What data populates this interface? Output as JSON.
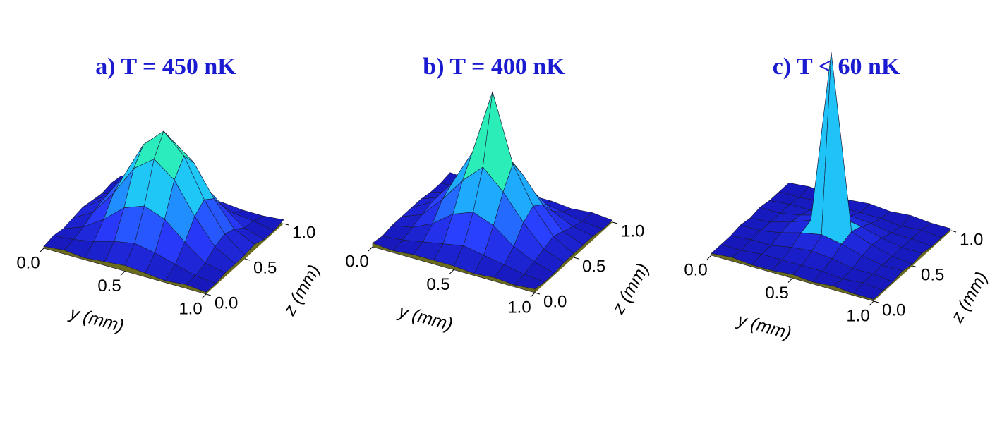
{
  "chart_data": [
    {
      "type": "surface",
      "title": "a) T = 450 nK",
      "xlabel": "y (mm)",
      "ylabel": "z (mm)",
      "xlim": [
        0,
        1
      ],
      "ylim": [
        0,
        1
      ],
      "clim": [
        0,
        1
      ],
      "xticks": [
        {
          "value": 0,
          "label": "0.0"
        },
        0.5,
        {
          "value": 1,
          "label": "1.0"
        }
      ],
      "yticks": [
        {
          "value": 0,
          "label": "0.0"
        },
        0.5,
        {
          "value": 1,
          "label": "1.0"
        }
      ],
      "colormap": [
        "#1414b4",
        "#2a3cff",
        "#1ea0ff",
        "#20e6f0",
        "#30f0a0",
        "#50f030",
        "#d8f020",
        "#f0b020",
        "#f07018"
      ],
      "floor_color": "#6b6b1e",
      "edge_color": "#1a1a3a",
      "x": [
        0,
        0.125,
        0.25,
        0.375,
        0.5,
        0.625,
        0.75,
        0.875,
        1
      ],
      "y": [
        0,
        0.125,
        0.25,
        0.375,
        0.5,
        0.625,
        0.75,
        0.875,
        1
      ],
      "z": [
        [
          0.01,
          0.02,
          0.01,
          0.02,
          0.03,
          0.02,
          0.01,
          0.02,
          0.01
        ],
        [
          0.02,
          0.03,
          0.05,
          0.08,
          0.1,
          0.08,
          0.05,
          0.02,
          0.01
        ],
        [
          0.01,
          0.05,
          0.12,
          0.21,
          0.25,
          0.21,
          0.12,
          0.04,
          0.02
        ],
        [
          0.02,
          0.08,
          0.21,
          0.37,
          0.45,
          0.37,
          0.21,
          0.08,
          0.02
        ],
        [
          0.03,
          0.1,
          0.25,
          0.45,
          0.55,
          0.45,
          0.25,
          0.1,
          0.02
        ],
        [
          0.02,
          0.08,
          0.21,
          0.37,
          0.45,
          0.37,
          0.21,
          0.08,
          0.03
        ],
        [
          0.01,
          0.04,
          0.12,
          0.21,
          0.25,
          0.21,
          0.12,
          0.04,
          0.01
        ],
        [
          0.02,
          0.02,
          0.04,
          0.08,
          0.1,
          0.08,
          0.04,
          0.03,
          0.01
        ],
        [
          0.01,
          0.01,
          0.02,
          0.02,
          0.02,
          0.02,
          0.01,
          0.01,
          0.02
        ]
      ]
    },
    {
      "type": "surface",
      "title": "b) T = 400 nK",
      "xlabel": "y (mm)",
      "ylabel": "z (mm)",
      "xlim": [
        0,
        1
      ],
      "ylim": [
        0,
        1
      ],
      "clim": [
        0,
        1
      ],
      "xticks": [
        {
          "value": 0,
          "label": "0.0"
        },
        0.5,
        {
          "value": 1,
          "label": "1.0"
        }
      ],
      "yticks": [
        {
          "value": 0,
          "label": "0.0"
        },
        0.5,
        {
          "value": 1,
          "label": "1.0"
        }
      ],
      "colormap": [
        "#1414b4",
        "#2a3cff",
        "#1ea0ff",
        "#20e6f0",
        "#30f0a0",
        "#50f030",
        "#d8f020",
        "#f0b020",
        "#f07018"
      ],
      "floor_color": "#6b6b1e",
      "edge_color": "#1a1a3a",
      "x": [
        0,
        0.125,
        0.25,
        0.375,
        0.5,
        0.625,
        0.75,
        0.875,
        1
      ],
      "y": [
        0,
        0.125,
        0.25,
        0.375,
        0.5,
        0.625,
        0.75,
        0.875,
        1
      ],
      "z": [
        [
          0.02,
          0.01,
          0.02,
          0.02,
          0.02,
          0.01,
          0.02,
          0.01,
          0.02
        ],
        [
          0.01,
          0.02,
          0.04,
          0.06,
          0.08,
          0.06,
          0.04,
          0.02,
          0.01
        ],
        [
          0.02,
          0.04,
          0.09,
          0.17,
          0.21,
          0.17,
          0.09,
          0.04,
          0.01
        ],
        [
          0.02,
          0.06,
          0.17,
          0.3,
          0.4,
          0.3,
          0.17,
          0.06,
          0.02
        ],
        [
          0.02,
          0.08,
          0.21,
          0.4,
          0.75,
          0.4,
          0.21,
          0.08,
          0.02
        ],
        [
          0.02,
          0.06,
          0.17,
          0.3,
          0.4,
          0.3,
          0.17,
          0.06,
          0.02
        ],
        [
          0.01,
          0.04,
          0.09,
          0.17,
          0.21,
          0.17,
          0.09,
          0.04,
          0.02
        ],
        [
          0.01,
          0.02,
          0.04,
          0.06,
          0.08,
          0.06,
          0.04,
          0.02,
          0.01
        ],
        [
          0.02,
          0.01,
          0.01,
          0.02,
          0.02,
          0.02,
          0.01,
          0.02,
          0.01
        ]
      ]
    },
    {
      "type": "surface",
      "title": "c) T < 60 nK",
      "xlabel": "y (mm)",
      "ylabel": "z (mm)",
      "xlim": [
        0,
        1
      ],
      "ylim": [
        0,
        1
      ],
      "clim": [
        0,
        1
      ],
      "xticks": [
        {
          "value": 0,
          "label": "0.0"
        },
        0.5,
        {
          "value": 1,
          "label": "1.0"
        }
      ],
      "yticks": [
        {
          "value": 0,
          "label": "0.0"
        },
        0.5,
        {
          "value": 1,
          "label": "1.0"
        }
      ],
      "colormap": [
        "#1414b4",
        "#2a3cff",
        "#1ea0ff",
        "#20e6f0",
        "#30f0a0",
        "#50f030",
        "#d8f020",
        "#f0b020",
        "#f07018"
      ],
      "floor_color": "#6b6b1e",
      "edge_color": "#1a1a3a",
      "x": [
        0,
        0.125,
        0.25,
        0.375,
        0.5,
        0.625,
        0.75,
        0.875,
        1
      ],
      "y": [
        0,
        0.125,
        0.25,
        0.375,
        0.5,
        0.625,
        0.75,
        0.875,
        1
      ],
      "z": [
        [
          0.01,
          0.02,
          0.01,
          0.01,
          0.02,
          0.01,
          0.02,
          0.01,
          0.01
        ],
        [
          0.01,
          0.01,
          0.02,
          0.02,
          0.02,
          0.02,
          0.01,
          0.02,
          0.01
        ],
        [
          0.01,
          0.02,
          0.02,
          0.04,
          0.05,
          0.04,
          0.02,
          0.02,
          0.01
        ],
        [
          0.02,
          0.02,
          0.04,
          0.07,
          0.09,
          0.07,
          0.04,
          0.02,
          0.02
        ],
        [
          0.01,
          0.02,
          0.05,
          0.09,
          1.0,
          0.09,
          0.05,
          0.02,
          0.01
        ],
        [
          0.02,
          0.02,
          0.04,
          0.07,
          0.09,
          0.07,
          0.04,
          0.02,
          0.02
        ],
        [
          0.01,
          0.02,
          0.02,
          0.04,
          0.05,
          0.04,
          0.02,
          0.02,
          0.01
        ],
        [
          0.01,
          0.01,
          0.02,
          0.02,
          0.02,
          0.02,
          0.01,
          0.02,
          0.01
        ],
        [
          0.01,
          0.02,
          0.01,
          0.01,
          0.02,
          0.01,
          0.02,
          0.01,
          0.01
        ]
      ]
    }
  ]
}
